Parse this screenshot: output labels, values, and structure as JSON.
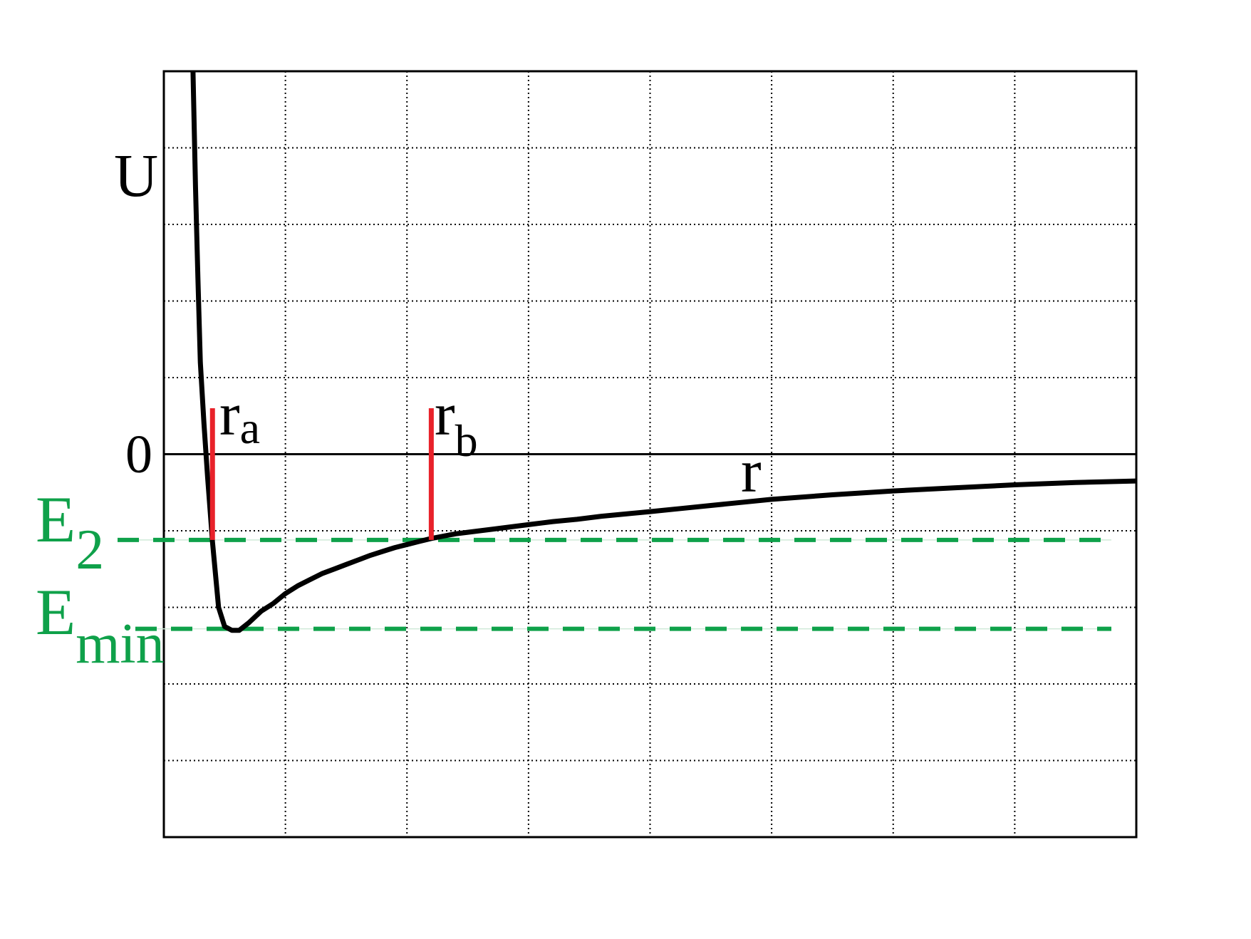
{
  "chart_data": {
    "type": "line",
    "title": "",
    "ylabel": "U",
    "xlabel": "r",
    "xlim": [
      0,
      8
    ],
    "ylim": [
      -5,
      5
    ],
    "grid": true,
    "x_gridlines": [
      1,
      2,
      3,
      4,
      5,
      6,
      7
    ],
    "y_gridlines": [
      -4,
      -3,
      -2,
      -1,
      0,
      1,
      2,
      3,
      4
    ],
    "zero_label": "0",
    "colors": {
      "curve": "#000000",
      "markers": "#e8222a",
      "levels": "#0fa14a",
      "grid": "#000000"
    },
    "series": [
      {
        "x": [
          0.24,
          0.26,
          0.28,
          0.3,
          0.33,
          0.36,
          0.4,
          0.45,
          0.5,
          0.56,
          0.62,
          0.7,
          0.8,
          0.9,
          1.0,
          1.1,
          1.2,
          1.3,
          1.4,
          1.5,
          1.6,
          1.7,
          1.8,
          1.9,
          2.0,
          2.1,
          2.2,
          2.3,
          2.4,
          2.5,
          2.6,
          2.7,
          2.85,
          3.0,
          3.2,
          3.4,
          3.6,
          3.8,
          4.0,
          4.25,
          4.5,
          4.75,
          5.0,
          5.5,
          6.0,
          6.5,
          7.0,
          7.5,
          8.0
        ],
        "y": [
          5.0,
          3.5,
          2.3,
          1.2,
          0.4,
          -0.3,
          -1.15,
          -2.0,
          -2.25,
          -2.3,
          -2.3,
          -2.2,
          -2.05,
          -1.95,
          -1.82,
          -1.72,
          -1.64,
          -1.56,
          -1.5,
          -1.44,
          -1.38,
          -1.32,
          -1.27,
          -1.22,
          -1.18,
          -1.14,
          -1.1,
          -1.07,
          -1.04,
          -1.02,
          -1.0,
          -0.98,
          -0.95,
          -0.92,
          -0.88,
          -0.85,
          -0.81,
          -0.78,
          -0.75,
          -0.71,
          -0.67,
          -0.63,
          -0.59,
          -0.53,
          -0.48,
          -0.44,
          -0.4,
          -0.37,
          -0.35
        ]
      }
    ],
    "levels": [
      {
        "label": "E",
        "sub": "2",
        "y": -1.12
      },
      {
        "label": "E",
        "sub": "min",
        "y": -2.28
      }
    ],
    "markers": [
      {
        "label": "r",
        "sub": "a",
        "x": 0.4
      },
      {
        "label": "r",
        "sub": "b",
        "x": 2.2
      }
    ]
  }
}
